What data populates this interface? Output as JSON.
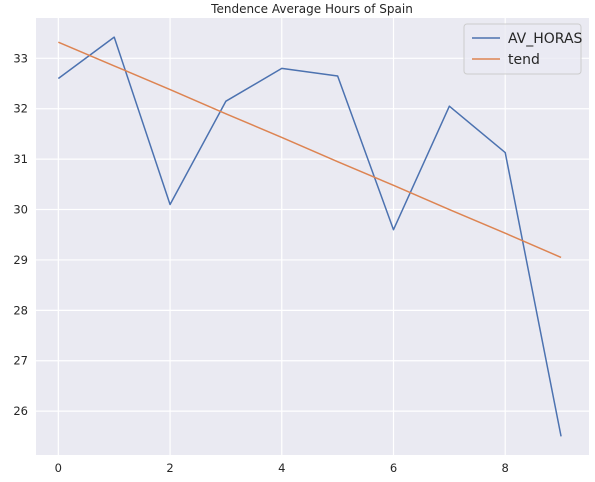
{
  "chart_data": {
    "type": "line",
    "title": "Tendence Average Hours of Spain",
    "xlabel": "",
    "ylabel": "",
    "x": [
      0,
      1,
      2,
      3,
      4,
      5,
      6,
      7,
      8,
      9
    ],
    "series": [
      {
        "name": "AV_HORAS",
        "color": "#4c72b0",
        "values": [
          32.6,
          33.42,
          30.1,
          32.15,
          32.8,
          32.65,
          29.6,
          32.05,
          31.13,
          25.5
        ]
      },
      {
        "name": "tend",
        "color": "#dd8452",
        "values": [
          33.32,
          32.85,
          32.38,
          31.9,
          31.43,
          30.95,
          30.48,
          30.0,
          29.53,
          29.05
        ]
      }
    ],
    "xlim": [
      -0.4,
      9.5
    ],
    "ylim": [
      25.13,
      33.8
    ],
    "xticks": [
      0,
      2,
      4,
      6,
      8
    ],
    "yticks": [
      26,
      27,
      28,
      29,
      30,
      31,
      32,
      33
    ],
    "grid": true,
    "legend": "top-right",
    "background": "#eaeaf2",
    "grid_color": "#ffffff"
  }
}
